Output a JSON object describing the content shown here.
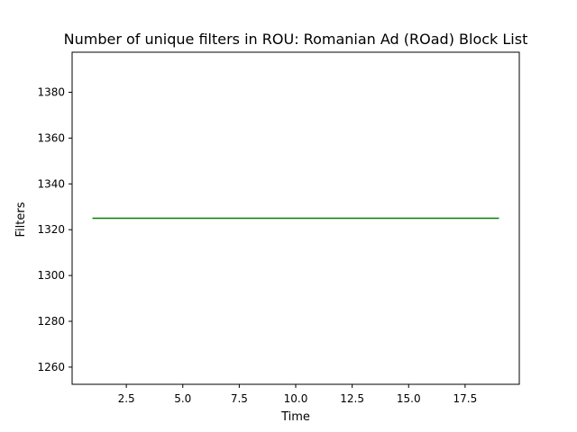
{
  "chart_data": {
    "type": "line",
    "title": "Number of unique filters in ROU: Romanian Ad (ROad) Block List",
    "xlabel": "Time",
    "ylabel": "Filters",
    "xlim": [
      0.1,
      19.9
    ],
    "ylim": [
      1252.5,
      1397.5
    ],
    "xticks": [
      2.5,
      5.0,
      7.5,
      10.0,
      12.5,
      15.0,
      17.5
    ],
    "xtick_labels": [
      "2.5",
      "5.0",
      "7.5",
      "10.0",
      "12.5",
      "15.0",
      "17.5"
    ],
    "yticks": [
      1260,
      1280,
      1300,
      1320,
      1340,
      1360,
      1380
    ],
    "ytick_labels": [
      "1260",
      "1280",
      "1300",
      "1320",
      "1340",
      "1360",
      "1380"
    ],
    "grid": false,
    "series": [
      {
        "color": "#008000",
        "x": [
          1,
          19
        ],
        "y": [
          1325,
          1325
        ]
      }
    ]
  }
}
